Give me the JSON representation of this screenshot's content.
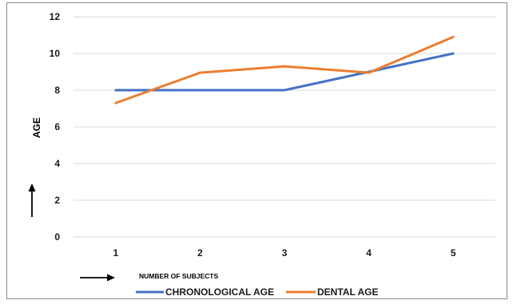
{
  "chart_data": {
    "type": "line",
    "title": "",
    "xlabel": "NUMBER OF SUBJECTS",
    "ylabel": "AGE",
    "categories": [
      "1",
      "2",
      "3",
      "4",
      "5"
    ],
    "ylim": [
      0,
      12
    ],
    "yticks": [
      "0",
      "2",
      "4",
      "6",
      "8",
      "10",
      "12"
    ],
    "grid": true,
    "legend": "bottom",
    "series": [
      {
        "name": "CHRONOLOGICAL AGE",
        "color": "#4472c4",
        "values": [
          8,
          8,
          8,
          9,
          10
        ]
      },
      {
        "name": "DENTAL AGE",
        "color": "#ed7d31",
        "values": [
          7.3,
          8.95,
          9.3,
          8.95,
          10.9
        ]
      }
    ]
  }
}
